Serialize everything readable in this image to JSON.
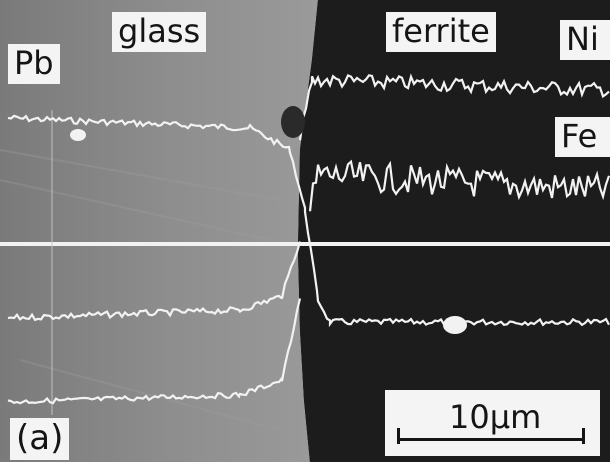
{
  "labels": {
    "glass": "glass",
    "ferrite": "ferrite",
    "ni": "Ni",
    "pb": "Pb",
    "fe": "Fe",
    "panel": "(a)"
  },
  "scale_bar": {
    "text": "10μm"
  },
  "colors": {
    "glass_region": "#8a8a8a",
    "ferrite_region": "#1c1c1c",
    "trace": "#f2f2f2",
    "label_bg": "#f4f4f4"
  }
}
